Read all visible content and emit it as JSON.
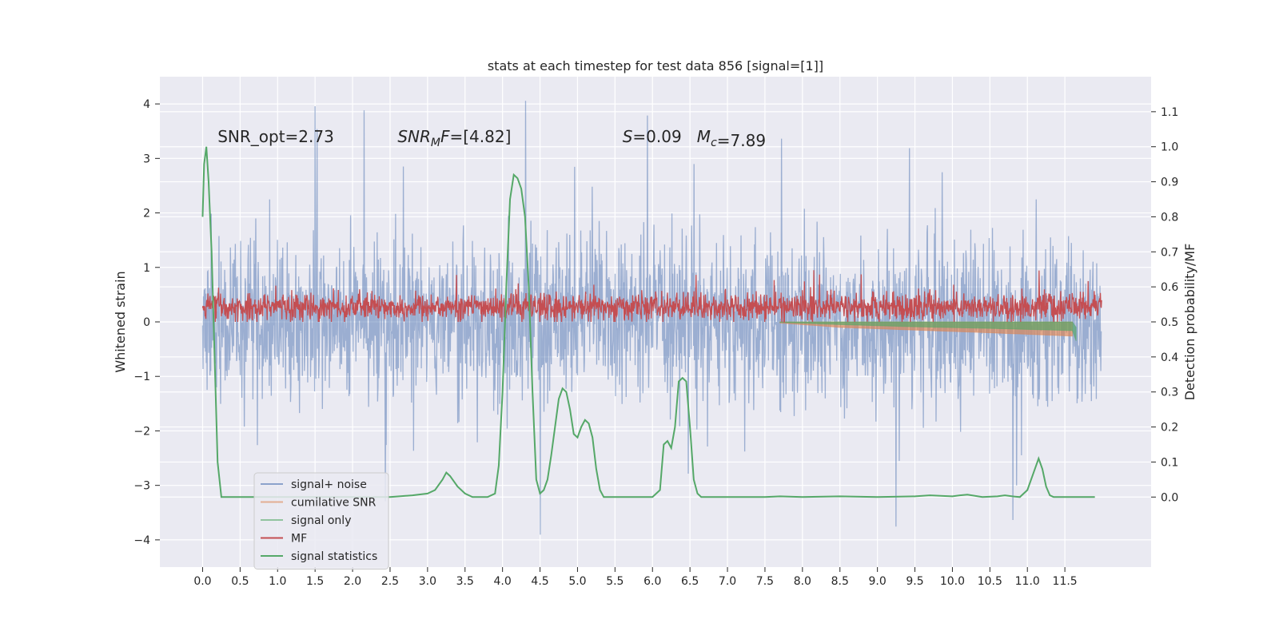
{
  "chart_data": {
    "type": "line",
    "title": "stats at each timestep for test data 856 [signal=[1]]",
    "xlabel": "",
    "ylabel_left": "Whitened strain",
    "ylabel_right": "Detection probability/MF",
    "xlim": [
      -0.57,
      12.65
    ],
    "ylim_left": [
      -4.5,
      4.5
    ],
    "ylim_right": [
      -0.2,
      1.2
    ],
    "x_ticks": [
      0.0,
      0.5,
      1.0,
      1.5,
      2.0,
      2.5,
      3.0,
      3.5,
      4.0,
      4.5,
      5.0,
      5.5,
      6.0,
      6.5,
      7.0,
      7.5,
      8.0,
      8.5,
      9.0,
      9.5,
      10.0,
      10.5,
      11.0,
      11.5
    ],
    "x_tick_labels": [
      "0.0",
      "0.5",
      "1.0",
      "1.5",
      "2.0",
      "2.5",
      "3.0",
      "3.5",
      "4.0",
      "4.5",
      "5.0",
      "5.5",
      "6.0",
      "6.5",
      "7.0",
      "7.5",
      "8.0",
      "8.5",
      "9.0",
      "9.5",
      "10.0",
      "10.5",
      "11.0",
      "11.5"
    ],
    "y_left_ticks": [
      -4,
      -3,
      -2,
      -1,
      0,
      1,
      2,
      3,
      4
    ],
    "y_left_tick_labels": [
      "−4",
      "−3",
      "−2",
      "−1",
      "0",
      "1",
      "2",
      "3",
      "4"
    ],
    "y_right_ticks": [
      0.0,
      0.1,
      0.2,
      0.3,
      0.4,
      0.5,
      0.6,
      0.7,
      0.8,
      0.9,
      1.0,
      1.1
    ],
    "y_right_tick_labels": [
      "0.0",
      "0.1",
      "0.2",
      "0.3",
      "0.4",
      "0.5",
      "0.6",
      "0.7",
      "0.8",
      "0.9",
      "1.0",
      "1.1"
    ],
    "grid": true,
    "legend_position": "lower-left",
    "annotations": [
      {
        "text": "SNR_opt=2.73",
        "x": 0.2,
        "y": 3.3
      },
      {
        "text": "SNR_MF=[4.82]",
        "x": 2.6,
        "y": 3.3
      },
      {
        "text": "S=0.09   M_c=7.89",
        "x": 5.6,
        "y": 3.3
      }
    ],
    "series": [
      {
        "name": "signal+ noise",
        "axis": "left",
        "color": "#4c72b0",
        "alpha": 0.5,
        "kind": "noise-band",
        "x_range": [
          0.0,
          11.99
        ],
        "band_low": -1.3,
        "band_high": 1.3,
        "spike_max": 4.1,
        "spike_min": -4.0
      },
      {
        "name": "cumilative SNR",
        "axis": "left",
        "color": "#dd8452",
        "alpha": 0.5,
        "kind": "wedge",
        "x": [
          7.7,
          8.5,
          9.5,
          10.5,
          11.6
        ],
        "upper": [
          0.0,
          0.0,
          0.0,
          0.0,
          0.0
        ],
        "lower": [
          -0.02,
          -0.1,
          -0.15,
          -0.2,
          -0.26
        ]
      },
      {
        "name": "signal only",
        "axis": "left",
        "color": "#55a868",
        "alpha": 0.5,
        "kind": "wedge",
        "x": [
          7.7,
          8.5,
          9.5,
          10.5,
          11.6,
          11.65
        ],
        "upper": [
          0.0,
          0.0,
          0.0,
          0.0,
          0.0,
          -0.1
        ],
        "lower": [
          -0.01,
          -0.05,
          -0.09,
          -0.12,
          -0.16,
          -0.35
        ]
      },
      {
        "name": "MF",
        "axis": "left",
        "color": "#c44e52",
        "alpha": 1.0,
        "kind": "noise-band",
        "x_range": [
          0.0,
          11.99
        ],
        "band_low": 0.05,
        "band_high": 0.5,
        "spike_max": 0.95,
        "spike_min": 0.0
      },
      {
        "name": "signal statistics",
        "axis": "right",
        "color": "#55a868",
        "alpha": 1.0,
        "kind": "line",
        "x": [
          0.0,
          0.02,
          0.05,
          0.08,
          0.12,
          0.16,
          0.2,
          0.25,
          0.3,
          0.4,
          0.6,
          1.0,
          1.5,
          2.0,
          2.5,
          2.8,
          3.0,
          3.1,
          3.2,
          3.25,
          3.3,
          3.4,
          3.5,
          3.6,
          3.8,
          3.9,
          3.95,
          4.0,
          4.05,
          4.1,
          4.15,
          4.2,
          4.25,
          4.3,
          4.35,
          4.4,
          4.45,
          4.5,
          4.55,
          4.6,
          4.65,
          4.7,
          4.75,
          4.8,
          4.85,
          4.9,
          4.95,
          5.0,
          5.05,
          5.1,
          5.15,
          5.2,
          5.25,
          5.3,
          5.35,
          5.4,
          5.5,
          5.7,
          6.0,
          6.1,
          6.15,
          6.2,
          6.25,
          6.3,
          6.35,
          6.4,
          6.45,
          6.5,
          6.55,
          6.6,
          6.65,
          6.7,
          6.8,
          7.0,
          7.5,
          7.7,
          8.0,
          8.5,
          9.0,
          9.5,
          9.7,
          9.9,
          10.0,
          10.1,
          10.2,
          10.4,
          10.6,
          10.7,
          10.8,
          10.9,
          11.0,
          11.1,
          11.15,
          11.2,
          11.25,
          11.3,
          11.35,
          11.4,
          11.5,
          11.7,
          11.9
        ],
        "y": [
          0.8,
          0.95,
          1.0,
          0.9,
          0.7,
          0.4,
          0.1,
          0.0,
          0.0,
          0.0,
          0.0,
          0.0,
          0.0,
          0.0,
          0.0,
          0.005,
          0.01,
          0.02,
          0.05,
          0.07,
          0.06,
          0.03,
          0.01,
          0.0,
          0.0,
          0.01,
          0.09,
          0.3,
          0.6,
          0.85,
          0.92,
          0.91,
          0.88,
          0.8,
          0.6,
          0.3,
          0.05,
          0.01,
          0.02,
          0.05,
          0.12,
          0.2,
          0.28,
          0.31,
          0.3,
          0.25,
          0.18,
          0.17,
          0.2,
          0.22,
          0.21,
          0.17,
          0.08,
          0.02,
          0.0,
          0.0,
          0.0,
          0.0,
          0.0,
          0.02,
          0.15,
          0.16,
          0.14,
          0.2,
          0.33,
          0.34,
          0.33,
          0.2,
          0.05,
          0.01,
          0.0,
          0.0,
          0.0,
          0.0,
          0.0,
          0.002,
          0.0,
          0.002,
          0.0,
          0.002,
          0.005,
          0.003,
          0.002,
          0.005,
          0.007,
          0.0,
          0.002,
          0.005,
          0.002,
          0.0,
          0.02,
          0.08,
          0.11,
          0.08,
          0.03,
          0.005,
          0.0,
          0.0,
          0.0,
          0.0,
          0.0
        ]
      }
    ]
  }
}
